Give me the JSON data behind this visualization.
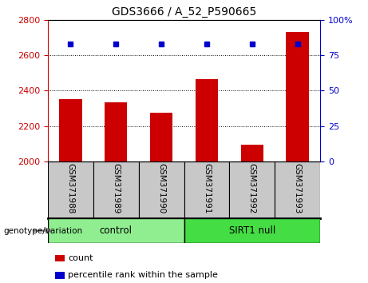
{
  "title": "GDS3666 / A_52_P590665",
  "samples": [
    "GSM371988",
    "GSM371989",
    "GSM371990",
    "GSM371991",
    "GSM371992",
    "GSM371993"
  ],
  "counts": [
    2350,
    2335,
    2275,
    2463,
    2093,
    2730
  ],
  "percentile_ranks": [
    83,
    83,
    83,
    83,
    83,
    83
  ],
  "left_ylim": [
    2000,
    2800
  ],
  "left_yticks": [
    2000,
    2200,
    2400,
    2600,
    2800
  ],
  "right_ylim": [
    0,
    100
  ],
  "right_yticks": [
    0,
    25,
    50,
    75,
    100
  ],
  "right_yticklabels": [
    "0",
    "25",
    "50",
    "75",
    "100%"
  ],
  "bar_color": "#CC0000",
  "marker_color": "#0000CC",
  "bar_width": 0.5,
  "left_tick_color": "#CC0000",
  "right_tick_color": "#0000CC",
  "background_color": "white",
  "label_box_color": "#C8C8C8",
  "control_color": "#90EE90",
  "sirt1_color": "#44DD44",
  "legend_count_label": "count",
  "legend_percentile_label": "percentile rank within the sample",
  "genotype_label": "genotype/variation"
}
